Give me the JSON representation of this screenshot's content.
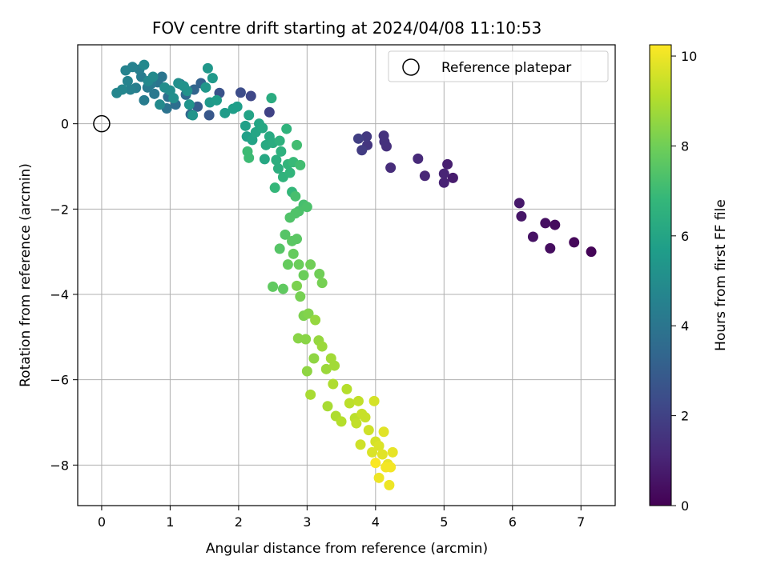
{
  "chart_data": {
    "type": "scatter",
    "title": "FOV centre drift starting at 2024/04/08 11:10:53",
    "xlabel": "Angular distance from reference (arcmin)",
    "ylabel": "Rotation from reference (arcmin)",
    "xlim": [
      -0.35,
      7.5
    ],
    "ylim": [
      -8.95,
      1.85
    ],
    "xticks": [
      0,
      1,
      2,
      3,
      4,
      5,
      6,
      7
    ],
    "yticks": [
      0,
      -2,
      -4,
      -6,
      -8
    ],
    "ytick_labels": [
      "0",
      "−2",
      "−4",
      "−6",
      "−8"
    ],
    "grid": true,
    "legend": {
      "location": "top-right",
      "entries": [
        "Reference platepar"
      ]
    },
    "reference_point": {
      "x": 0,
      "y": 0,
      "marker": "hollow-circle"
    },
    "colorbar": {
      "label": "Hours from first FF file",
      "range": [
        0,
        10.25
      ],
      "ticks": [
        0,
        2,
        4,
        6,
        8,
        10
      ],
      "colormap": "viridis"
    },
    "points": [
      [
        7.15,
        -3.0,
        0.1
      ],
      [
        6.9,
        -2.78,
        0.2
      ],
      [
        6.62,
        -2.37,
        0.3
      ],
      [
        6.55,
        -2.92,
        0.35
      ],
      [
        6.48,
        -2.33,
        0.4
      ],
      [
        6.3,
        -2.65,
        0.5
      ],
      [
        6.13,
        -2.17,
        0.6
      ],
      [
        6.1,
        -1.86,
        0.7
      ],
      [
        5.13,
        -1.27,
        0.8
      ],
      [
        5.05,
        -0.95,
        0.9
      ],
      [
        5.0,
        -1.38,
        1.0
      ],
      [
        5.0,
        -1.17,
        1.05
      ],
      [
        4.72,
        -1.22,
        1.1
      ],
      [
        4.62,
        -0.82,
        1.2
      ],
      [
        4.22,
        -1.03,
        1.3
      ],
      [
        4.16,
        -0.53,
        1.4
      ],
      [
        4.13,
        -0.42,
        1.45
      ],
      [
        4.12,
        -0.28,
        1.5
      ],
      [
        3.88,
        -0.5,
        1.6
      ],
      [
        3.87,
        -0.3,
        1.7
      ],
      [
        3.8,
        -0.62,
        1.8
      ],
      [
        3.75,
        -0.35,
        1.9
      ],
      [
        2.45,
        0.27,
        2.0
      ],
      [
        2.18,
        0.65,
        2.2
      ],
      [
        2.03,
        0.73,
        2.4
      ],
      [
        1.72,
        0.72,
        2.6
      ],
      [
        1.57,
        0.2,
        2.8
      ],
      [
        1.4,
        0.4,
        3.0
      ],
      [
        1.45,
        0.95,
        3.2
      ],
      [
        1.35,
        0.8,
        3.3
      ],
      [
        1.3,
        0.22,
        3.4
      ],
      [
        1.23,
        0.68,
        3.5
      ],
      [
        1.15,
        0.93,
        3.6
      ],
      [
        1.08,
        0.45,
        3.7
      ],
      [
        0.97,
        0.63,
        3.8
      ],
      [
        0.95,
        0.36,
        3.9
      ],
      [
        0.88,
        1.1,
        4.0
      ],
      [
        0.82,
        0.97,
        4.0
      ],
      [
        0.77,
        0.7,
        4.1
      ],
      [
        0.72,
        0.93,
        4.2
      ],
      [
        0.67,
        0.85,
        4.2
      ],
      [
        0.62,
        0.55,
        4.3
      ],
      [
        0.58,
        1.1,
        4.3
      ],
      [
        0.55,
        1.27,
        4.4
      ],
      [
        0.5,
        0.84,
        4.4
      ],
      [
        0.45,
        1.33,
        4.5
      ],
      [
        0.42,
        0.8,
        4.5
      ],
      [
        0.38,
        1.0,
        4.6
      ],
      [
        0.35,
        1.25,
        4.6
      ],
      [
        0.3,
        0.8,
        4.7
      ],
      [
        0.22,
        0.72,
        4.7
      ],
      [
        0.62,
        1.38,
        4.8
      ],
      [
        0.68,
        1.0,
        4.8
      ],
      [
        0.75,
        1.1,
        4.9
      ],
      [
        0.85,
        0.45,
        4.9
      ],
      [
        0.92,
        0.85,
        5.0
      ],
      [
        1.0,
        0.78,
        5.0
      ],
      [
        1.05,
        0.6,
        5.1
      ],
      [
        1.12,
        0.95,
        5.1
      ],
      [
        1.2,
        0.88,
        5.2
      ],
      [
        1.25,
        0.77,
        5.2
      ],
      [
        1.28,
        0.45,
        5.3
      ],
      [
        1.33,
        0.2,
        5.3
      ],
      [
        1.52,
        0.85,
        5.4
      ],
      [
        1.55,
        1.3,
        5.4
      ],
      [
        1.58,
        0.5,
        5.5
      ],
      [
        1.62,
        1.07,
        5.5
      ],
      [
        1.68,
        0.55,
        5.6
      ],
      [
        1.8,
        0.25,
        5.6
      ],
      [
        1.92,
        0.35,
        5.7
      ],
      [
        1.98,
        0.4,
        5.7
      ],
      [
        2.1,
        -0.05,
        5.8
      ],
      [
        2.12,
        -0.3,
        5.8
      ],
      [
        2.15,
        0.2,
        5.9
      ],
      [
        2.2,
        -0.38,
        5.9
      ],
      [
        2.25,
        -0.2,
        6.0
      ],
      [
        2.3,
        0.0,
        6.0
      ],
      [
        2.35,
        -0.1,
        6.1
      ],
      [
        2.38,
        -0.83,
        6.1
      ],
      [
        2.4,
        -0.5,
        6.2
      ],
      [
        2.45,
        -0.3,
        6.2
      ],
      [
        2.48,
        0.6,
        6.3
      ],
      [
        2.5,
        -0.45,
        6.3
      ],
      [
        2.55,
        -0.85,
        6.4
      ],
      [
        2.58,
        -1.05,
        6.4
      ],
      [
        2.6,
        -0.4,
        6.5
      ],
      [
        2.62,
        -0.65,
        6.5
      ],
      [
        2.65,
        -1.25,
        6.6
      ],
      [
        2.7,
        -0.12,
        6.6
      ],
      [
        2.72,
        -0.95,
        6.7
      ],
      [
        2.75,
        -1.15,
        6.7
      ],
      [
        2.53,
        -1.5,
        6.8
      ],
      [
        2.78,
        -1.6,
        6.8
      ],
      [
        2.8,
        -0.9,
        6.9
      ],
      [
        2.13,
        -0.65,
        7.0
      ],
      [
        2.15,
        -0.8,
        7.0
      ],
      [
        2.85,
        -0.5,
        7.1
      ],
      [
        2.9,
        -0.97,
        7.1
      ],
      [
        2.83,
        -1.7,
        7.2
      ],
      [
        2.95,
        -1.9,
        7.2
      ],
      [
        3.0,
        -1.95,
        7.3
      ],
      [
        2.88,
        -2.05,
        7.3
      ],
      [
        2.83,
        -2.1,
        7.4
      ],
      [
        2.75,
        -2.2,
        7.4
      ],
      [
        2.68,
        -2.6,
        7.5
      ],
      [
        2.6,
        -2.93,
        7.5
      ],
      [
        2.78,
        -2.75,
        7.6
      ],
      [
        2.85,
        -2.7,
        7.6
      ],
      [
        2.5,
        -3.82,
        7.7
      ],
      [
        2.65,
        -3.87,
        7.7
      ],
      [
        2.72,
        -3.3,
        7.8
      ],
      [
        2.8,
        -3.05,
        7.8
      ],
      [
        2.88,
        -3.3,
        7.9
      ],
      [
        2.95,
        -3.55,
        7.9
      ],
      [
        3.05,
        -3.3,
        8.0
      ],
      [
        3.18,
        -3.52,
        8.0
      ],
      [
        3.22,
        -3.73,
        8.1
      ],
      [
        2.9,
        -4.05,
        8.1
      ],
      [
        2.85,
        -3.8,
        8.2
      ],
      [
        2.95,
        -4.5,
        8.2
      ],
      [
        3.02,
        -4.45,
        8.3
      ],
      [
        2.87,
        -5.03,
        8.4
      ],
      [
        2.98,
        -5.05,
        8.4
      ],
      [
        3.0,
        -5.8,
        8.5
      ],
      [
        3.1,
        -5.5,
        8.5
      ],
      [
        3.17,
        -5.08,
        8.6
      ],
      [
        3.12,
        -4.6,
        8.6
      ],
      [
        3.22,
        -5.22,
        8.7
      ],
      [
        3.28,
        -5.75,
        8.7
      ],
      [
        3.35,
        -5.5,
        8.8
      ],
      [
        3.4,
        -5.67,
        8.8
      ],
      [
        3.05,
        -6.35,
        8.9
      ],
      [
        3.3,
        -6.62,
        8.9
      ],
      [
        3.38,
        -6.1,
        9.0
      ],
      [
        3.42,
        -6.85,
        9.0
      ],
      [
        3.5,
        -6.98,
        9.1
      ],
      [
        3.58,
        -6.22,
        9.1
      ],
      [
        3.62,
        -6.55,
        9.2
      ],
      [
        3.7,
        -6.9,
        9.2
      ],
      [
        3.72,
        -7.02,
        9.3
      ],
      [
        3.75,
        -6.5,
        9.3
      ],
      [
        3.8,
        -6.8,
        9.4
      ],
      [
        3.85,
        -6.88,
        9.4
      ],
      [
        3.78,
        -7.52,
        9.5
      ],
      [
        3.9,
        -7.18,
        9.5
      ],
      [
        3.98,
        -6.5,
        9.6
      ],
      [
        4.0,
        -7.45,
        9.6
      ],
      [
        3.95,
        -7.7,
        9.7
      ],
      [
        4.05,
        -7.55,
        9.7
      ],
      [
        4.1,
        -7.75,
        9.8
      ],
      [
        4.12,
        -7.22,
        9.8
      ],
      [
        4.18,
        -7.98,
        9.9
      ],
      [
        4.25,
        -7.7,
        9.9
      ],
      [
        4.05,
        -8.3,
        10.0
      ],
      [
        4.2,
        -8.47,
        10.0
      ],
      [
        4.15,
        -8.05,
        10.1
      ],
      [
        4.22,
        -8.05,
        10.1
      ],
      [
        4.0,
        -7.95,
        10.2
      ]
    ]
  }
}
